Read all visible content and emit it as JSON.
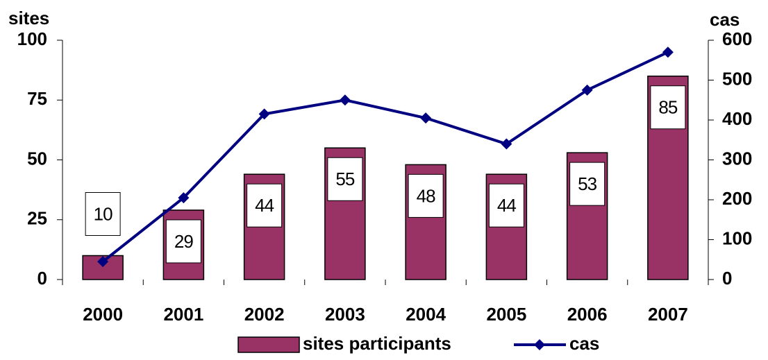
{
  "chart_data": {
    "type": "bar_line",
    "y_label": "sites",
    "y2_label": "cas",
    "categories": [
      "2000",
      "2001",
      "2002",
      "2003",
      "2004",
      "2005",
      "2006",
      "2007"
    ],
    "series": [
      {
        "name": "sites participants",
        "color": "#993366",
        "values": [
          10,
          29,
          44,
          55,
          48,
          44,
          53,
          85
        ]
      },
      {
        "name": "cas",
        "color": "#000080",
        "axis": "y2",
        "values": [
          45,
          205,
          415,
          450,
          405,
          340,
          475,
          570
        ]
      }
    ],
    "ylim": [
      0,
      100
    ],
    "yticks": [
      0,
      25,
      50,
      75,
      100
    ],
    "y2lim": [
      0,
      600
    ],
    "y2ticks": [
      0,
      100,
      200,
      300,
      400,
      500,
      600
    ],
    "legend": "bottom"
  }
}
